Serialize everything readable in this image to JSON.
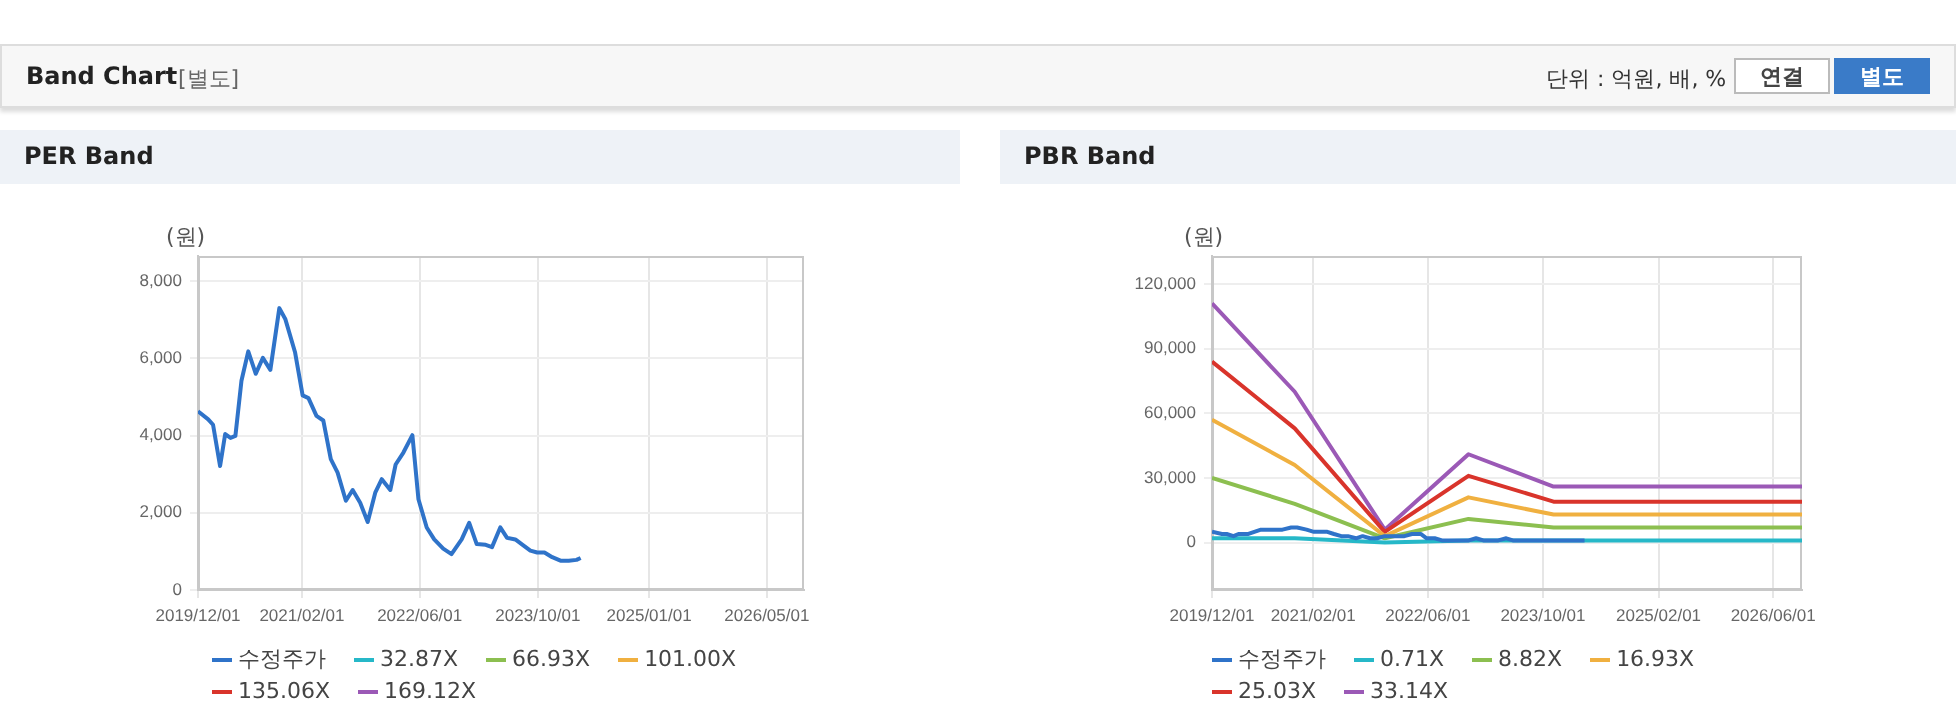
{
  "chart_data": [
    {
      "type": "other",
      "title": "Band Chart",
      "subtitle": "[별도]",
      "annotations": [
        "단위 : 억원, 배, %",
        "연결",
        "별도"
      ]
    },
    {
      "type": "line",
      "title": "PER Band",
      "ylabel": "(원)",
      "xlim": [
        "2019-12-01",
        "2026-10-01"
      ],
      "ylim": [
        0,
        8650
      ],
      "xticks": [
        {
          "value": "2019-12-01",
          "label": "2019/12/01"
        },
        {
          "value": "2021-02-01",
          "label": "2021/02/01"
        },
        {
          "value": "2022-06-01",
          "label": "2022/06/01"
        },
        {
          "value": "2023-10-01",
          "label": "2023/10/01"
        },
        {
          "value": "2025-01-01",
          "label": "2025/01/01"
        },
        {
          "value": "2026-05-01",
          "label": "2026/05/01"
        }
      ],
      "yticks": [
        {
          "value": 0,
          "label": "0"
        },
        {
          "value": 2000,
          "label": "2,000"
        },
        {
          "value": 4000,
          "label": "4,000"
        },
        {
          "value": 6000,
          "label": "6,000"
        },
        {
          "value": 8000,
          "label": "8,000"
        }
      ],
      "grid": true,
      "legend": "bottom",
      "marker": "none",
      "line_style": "solid",
      "series": [
        {
          "name": "수정주가",
          "color": "#2f73c9",
          "x": [
            "2019-12-01",
            "2020-01-12",
            "2020-02-01",
            "2020-03-01",
            "2020-03-22",
            "2020-04-13",
            "2020-05-03",
            "2020-05-28",
            "2020-06-25",
            "2020-07-26",
            "2020-08-24",
            "2020-09-24",
            "2020-10-31",
            "2020-11-25",
            "2021-01-04",
            "2021-02-04",
            "2021-02-28",
            "2021-04-02",
            "2021-04-30",
            "2021-05-31",
            "2021-06-28",
            "2021-08-01",
            "2021-08-29",
            "2021-09-29",
            "2021-10-30",
            "2021-11-30",
            "2021-12-27",
            "2022-01-31",
            "2022-02-22",
            "2022-03-26",
            "2022-05-02",
            "2022-05-27",
            "2022-06-30",
            "2022-07-31",
            "2022-09-06",
            "2022-10-10",
            "2022-11-21",
            "2022-12-22",
            "2023-01-22",
            "2023-02-28",
            "2023-03-26",
            "2023-04-29",
            "2023-05-27",
            "2023-06-30",
            "2023-07-30",
            "2023-08-31",
            "2023-09-28",
            "2023-10-28",
            "2023-11-29",
            "2024-01-02",
            "2024-02-05",
            "2024-03-08",
            "2024-03-25"
          ],
          "values": [
            4630,
            4420,
            4280,
            3210,
            4040,
            3940,
            3990,
            5420,
            6180,
            5600,
            6010,
            5700,
            7300,
            7010,
            6150,
            5040,
            4970,
            4510,
            4390,
            3390,
            3040,
            2310,
            2590,
            2260,
            1760,
            2520,
            2870,
            2590,
            3250,
            3560,
            4010,
            2350,
            1620,
            1310,
            1070,
            930,
            1310,
            1740,
            1190,
            1170,
            1110,
            1620,
            1350,
            1310,
            1170,
            1020,
            970,
            970,
            850,
            760,
            760,
            780,
            830
          ]
        },
        {
          "name": "32.87X",
          "color": "#26b8c8"
        },
        {
          "name": "66.93X",
          "color": "#8cbf50"
        },
        {
          "name": "101.00X",
          "color": "#f0b040"
        },
        {
          "name": "135.06X",
          "color": "#d9342b"
        },
        {
          "name": "169.12X",
          "color": "#9b59b6"
        }
      ]
    },
    {
      "type": "line",
      "title": "PBR Band",
      "ylabel": "(원)",
      "xlim": [
        "2019-12-01",
        "2026-10-01"
      ],
      "ylim": [
        -22000,
        133000
      ],
      "xticks": [
        {
          "value": "2019-12-01",
          "label": "2019/12/01"
        },
        {
          "value": "2021-02-01",
          "label": "2021/02/01"
        },
        {
          "value": "2022-06-01",
          "label": "2022/06/01"
        },
        {
          "value": "2023-10-01",
          "label": "2023/10/01"
        },
        {
          "value": "2025-02-01",
          "label": "2025/02/01"
        },
        {
          "value": "2026-06-01",
          "label": "2026/06/01"
        }
      ],
      "yticks": [
        {
          "value": 0,
          "label": "0"
        },
        {
          "value": 30000,
          "label": "30,000"
        },
        {
          "value": 60000,
          "label": "60,000"
        },
        {
          "value": 90000,
          "label": "90,000"
        },
        {
          "value": 120000,
          "label": "120,000"
        }
      ],
      "grid": true,
      "legend": "bottom",
      "marker": "none",
      "line_style": "solid",
      "series": [
        {
          "name": "수정주가",
          "color": "#2f73c9",
          "x": [
            "2019-12-01",
            "2020-01-12",
            "2020-02-01",
            "2020-03-01",
            "2020-03-22",
            "2020-04-13",
            "2020-05-03",
            "2020-05-28",
            "2020-06-25",
            "2020-07-26",
            "2020-08-24",
            "2020-09-24",
            "2020-10-31",
            "2020-11-25",
            "2021-01-04",
            "2021-02-04",
            "2021-02-28",
            "2021-04-02",
            "2021-04-30",
            "2021-05-31",
            "2021-06-28",
            "2021-08-01",
            "2021-08-29",
            "2021-09-29",
            "2021-10-30",
            "2021-11-30",
            "2021-12-27",
            "2022-01-31",
            "2022-02-22",
            "2022-03-26",
            "2022-05-02",
            "2022-05-27",
            "2022-06-30",
            "2022-07-31",
            "2022-09-06",
            "2022-10-10",
            "2022-11-21",
            "2022-12-22",
            "2023-01-22",
            "2023-02-28",
            "2023-03-26",
            "2023-04-29",
            "2023-05-27",
            "2023-06-30",
            "2023-07-30",
            "2023-08-31",
            "2023-09-28",
            "2023-10-28",
            "2023-11-29",
            "2024-01-02",
            "2024-02-05",
            "2024-03-08",
            "2024-03-25"
          ],
          "values": [
            5000,
            4000,
            4000,
            3000,
            4000,
            4000,
            4000,
            5000,
            6000,
            6000,
            6000,
            6000,
            7000,
            7000,
            6000,
            5000,
            5000,
            5000,
            4000,
            3000,
            3000,
            2000,
            3000,
            2000,
            2000,
            3000,
            3000,
            3000,
            3000,
            4000,
            4000,
            2000,
            2000,
            1000,
            1000,
            1000,
            1000,
            2000,
            1000,
            1000,
            1000,
            2000,
            1000,
            1000,
            1000,
            1000,
            1000,
            1000,
            1000,
            1000,
            1000,
            1000,
            1000
          ]
        },
        {
          "name": "0.71X",
          "color": "#26b8c8",
          "x": [
            "2019-12-01",
            "2020-11-15",
            "2021-12-01",
            "2022-11-20",
            "2023-11-15",
            "2026-10-01"
          ],
          "values": [
            2000,
            2000,
            0,
            1000,
            1000,
            1000
          ]
        },
        {
          "name": "8.82X",
          "color": "#8cbf50",
          "x": [
            "2019-12-01",
            "2020-11-15",
            "2021-12-01",
            "2022-11-20",
            "2023-11-15",
            "2026-10-01"
          ],
          "values": [
            30000,
            18000,
            2000,
            11000,
            7000,
            7000
          ]
        },
        {
          "name": "16.93X",
          "color": "#f0b040",
          "x": [
            "2019-12-01",
            "2020-11-15",
            "2021-12-01",
            "2022-11-20",
            "2023-11-15",
            "2026-10-01"
          ],
          "values": [
            57000,
            36000,
            3000,
            21000,
            13000,
            13000
          ]
        },
        {
          "name": "25.03X",
          "color": "#d9342b",
          "x": [
            "2019-12-01",
            "2020-11-15",
            "2021-12-01",
            "2022-11-20",
            "2023-11-15",
            "2026-10-01"
          ],
          "values": [
            84000,
            53000,
            5000,
            31000,
            19000,
            19000
          ]
        },
        {
          "name": "33.14X",
          "color": "#9b59b6",
          "x": [
            "2019-12-01",
            "2020-11-15",
            "2021-12-01",
            "2022-11-20",
            "2023-11-15",
            "2026-10-01"
          ],
          "values": [
            111000,
            70000,
            6000,
            41000,
            26000,
            26000
          ]
        }
      ]
    }
  ]
}
